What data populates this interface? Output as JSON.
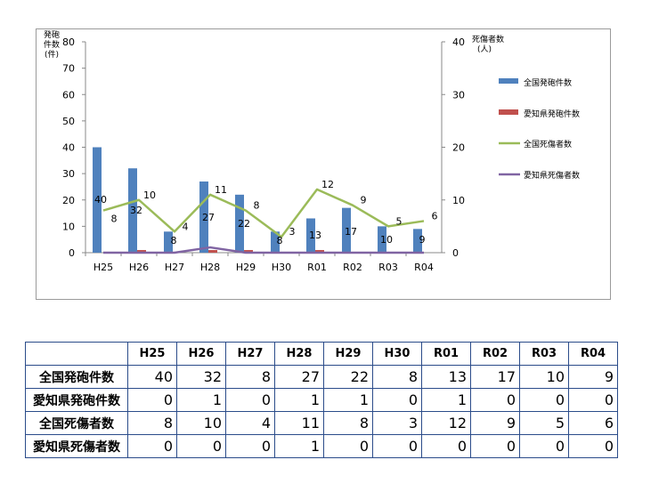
{
  "chart_data": {
    "type": "bar",
    "categories": [
      "H25",
      "H26",
      "H27",
      "H28",
      "H29",
      "H30",
      "R01",
      "R02",
      "R03",
      "R04"
    ],
    "y_left": {
      "label_lines": [
        "発砲",
        "件数",
        "(件)"
      ],
      "range": [
        0,
        80
      ],
      "ticks": [
        0,
        10,
        20,
        30,
        40,
        50,
        60,
        70,
        80
      ]
    },
    "y_right": {
      "label_lines": [
        "死傷者数",
        "(人)"
      ],
      "range": [
        0,
        40
      ],
      "ticks": [
        0,
        10,
        20,
        30,
        40
      ]
    },
    "series": [
      {
        "name": "全国発砲件数",
        "kind": "bar",
        "axis": "left",
        "color": "#4f81bd",
        "values": [
          40,
          32,
          8,
          27,
          22,
          8,
          13,
          17,
          10,
          9
        ]
      },
      {
        "name": "愛知県発砲件数",
        "kind": "bar",
        "axis": "left",
        "color": "#c0504d",
        "values": [
          0,
          1,
          0,
          1,
          1,
          0,
          1,
          0,
          0,
          0
        ]
      },
      {
        "name": "全国死傷者数",
        "kind": "line",
        "axis": "right",
        "color": "#9bbb59",
        "values": [
          8,
          10,
          4,
          11,
          8,
          3,
          12,
          9,
          5,
          6
        ]
      },
      {
        "name": "愛知県死傷者数",
        "kind": "line",
        "axis": "right",
        "color": "#8064a2",
        "values": [
          0,
          0,
          0,
          1,
          0,
          0,
          0,
          0,
          0,
          0
        ]
      }
    ],
    "data_labels": [
      {
        "series": 0,
        "values": [
          40,
          32,
          8,
          27,
          22,
          8,
          13,
          17,
          10,
          9
        ]
      },
      {
        "series": 2,
        "values": [
          8,
          10,
          4,
          11,
          8,
          3,
          12,
          9,
          5,
          6
        ]
      }
    ]
  },
  "table": {
    "columns": [
      "H25",
      "H26",
      "H27",
      "H28",
      "H29",
      "H30",
      "R01",
      "R02",
      "R03",
      "R04"
    ],
    "rows": [
      {
        "label": "全国発砲件数",
        "values": [
          40,
          32,
          8,
          27,
          22,
          8,
          13,
          17,
          10,
          9
        ]
      },
      {
        "label": "愛知県発砲件数",
        "values": [
          0,
          1,
          0,
          1,
          1,
          0,
          1,
          0,
          0,
          0
        ]
      },
      {
        "label": "全国死傷者数",
        "values": [
          8,
          10,
          4,
          11,
          8,
          3,
          12,
          9,
          5,
          6
        ]
      },
      {
        "label": "愛知県死傷者数",
        "values": [
          0,
          0,
          0,
          1,
          0,
          0,
          0,
          0,
          0,
          0
        ]
      }
    ]
  }
}
